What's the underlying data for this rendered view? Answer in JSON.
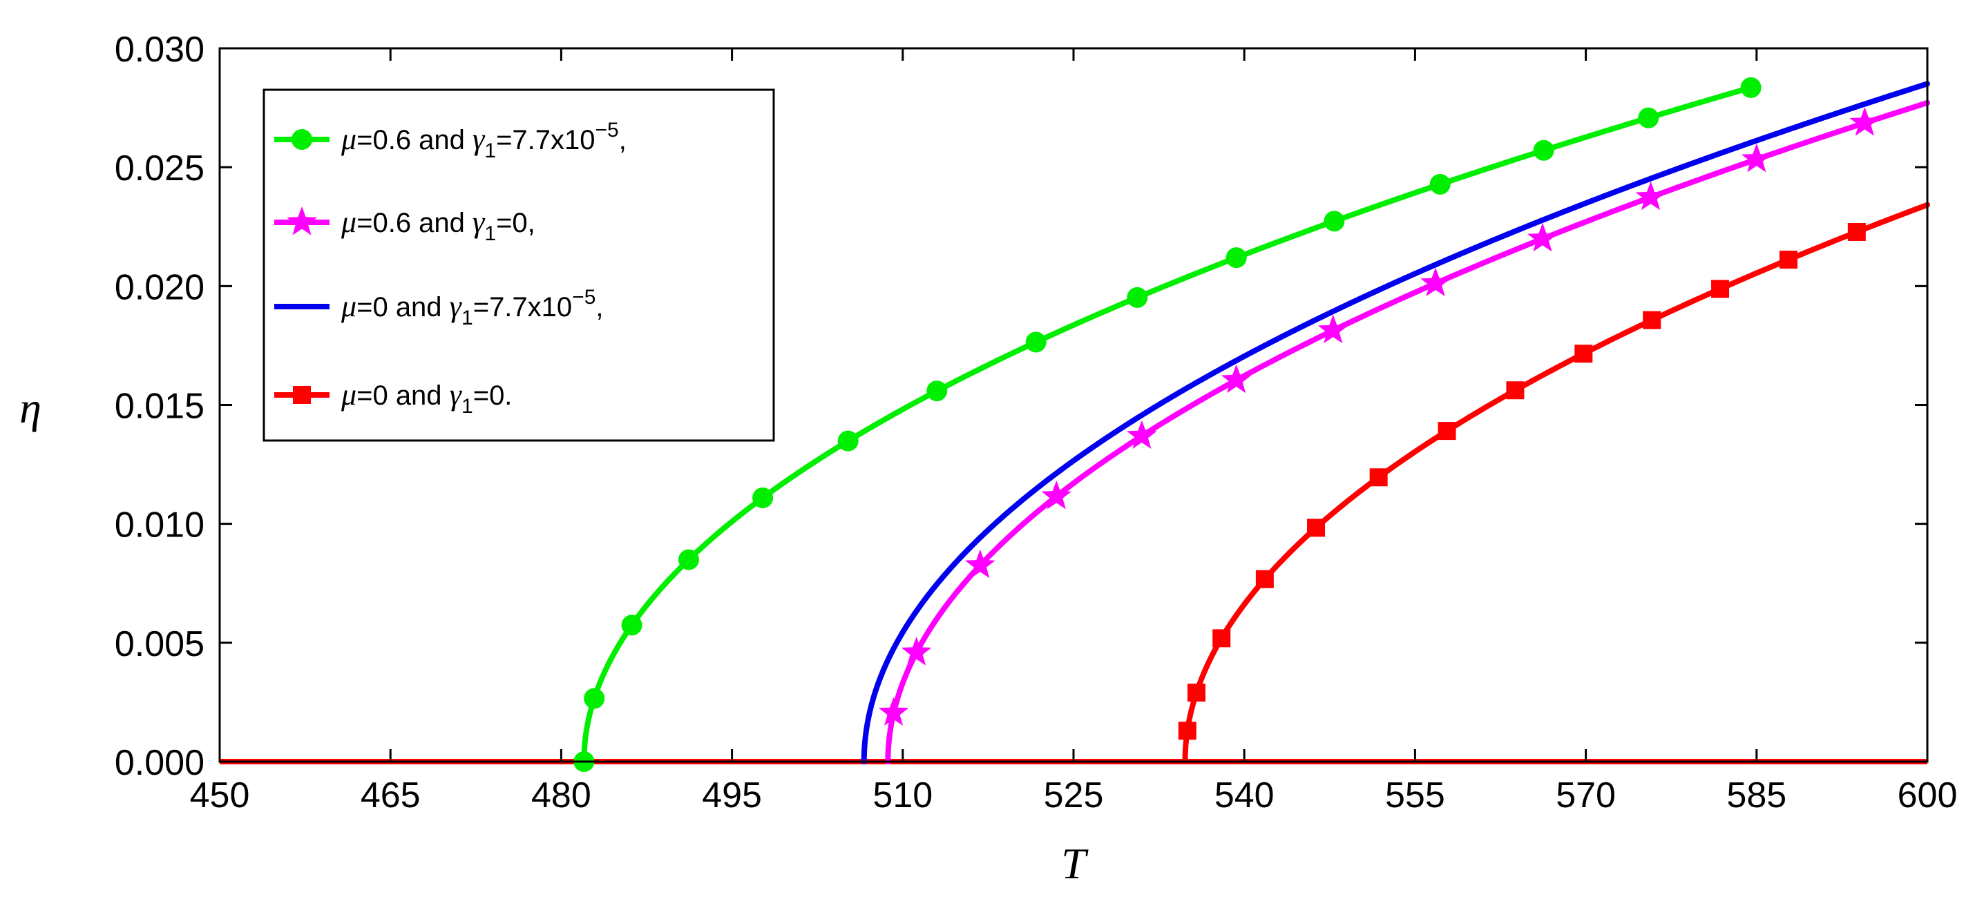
{
  "chart_data": {
    "type": "line",
    "title": "",
    "xlabel": "T",
    "ylabel": "η",
    "xlim": [
      450,
      600
    ],
    "ylim": [
      0,
      0.03
    ],
    "xticks": [
      "450",
      "465",
      "480",
      "495",
      "510",
      "525",
      "540",
      "555",
      "570",
      "585",
      "600"
    ],
    "yticks": [
      "0.000",
      "0.005",
      "0.010",
      "0.015",
      "0.020",
      "0.025",
      "0.030"
    ],
    "legend_position": "top-left",
    "series": [
      {
        "name": "μ=0.6 and γ1=7.7x10^-5,",
        "legend": {
          "mu": "μ",
          "eq1": "=0.6 and ",
          "gamma": "γ",
          "sub": "1",
          "eq2": "=7.7x10",
          "sup": "−5",
          "end": ","
        },
        "color": "#00ee00",
        "marker": "circle",
        "Tc": 482.0,
        "A": 0.0028,
        "x_end": 584.5,
        "markers_x": [
          482.0,
          482.9,
          486.2,
          491.2,
          497.7,
          505.2,
          513.0,
          521.7,
          530.6,
          539.3,
          547.9,
          557.2,
          566.3,
          575.5,
          584.5
        ]
      },
      {
        "name": "μ=0.6 and γ1=0,",
        "legend": {
          "mu": "μ",
          "eq1": "=0.6 and ",
          "gamma": "γ",
          "sub": "1",
          "eq2": "=0,",
          "sup": "",
          "end": ""
        },
        "color": "#ff00ff",
        "marker": "star",
        "Tc": 508.7,
        "A": 0.0029,
        "x_end": 600,
        "markers_x": [
          509.2,
          511.2,
          516.8,
          523.5,
          531.0,
          539.3,
          547.8,
          556.8,
          566.2,
          575.7,
          585.0,
          594.5
        ]
      },
      {
        "name": "μ=0 and γ1=7.7x10^-5,",
        "legend": {
          "mu": "μ",
          "eq1": "=0 and ",
          "gamma": "γ",
          "sub": "1",
          "eq2": "=7.7x10",
          "sup": "−5",
          "end": ","
        },
        "color": "#0000ee",
        "marker": "none",
        "Tc": 506.6,
        "A": 0.00295,
        "x_end": 600,
        "markers_x": []
      },
      {
        "name": "μ=0 and γ1=0.",
        "legend": {
          "mu": "μ",
          "eq1": "=0 and ",
          "gamma": "γ",
          "sub": "1",
          "eq2": "=0.",
          "sup": "",
          "end": ""
        },
        "color": "#ff0000",
        "marker": "square",
        "Tc": 534.8,
        "A": 0.0029,
        "x_end": 600,
        "markers_x": [
          535.0,
          535.8,
          538.0,
          541.8,
          546.3,
          551.8,
          557.8,
          563.8,
          569.8,
          575.8,
          581.8,
          587.8,
          593.8
        ]
      }
    ],
    "baseline": {
      "color": "#ff0000",
      "value": 0
    }
  }
}
